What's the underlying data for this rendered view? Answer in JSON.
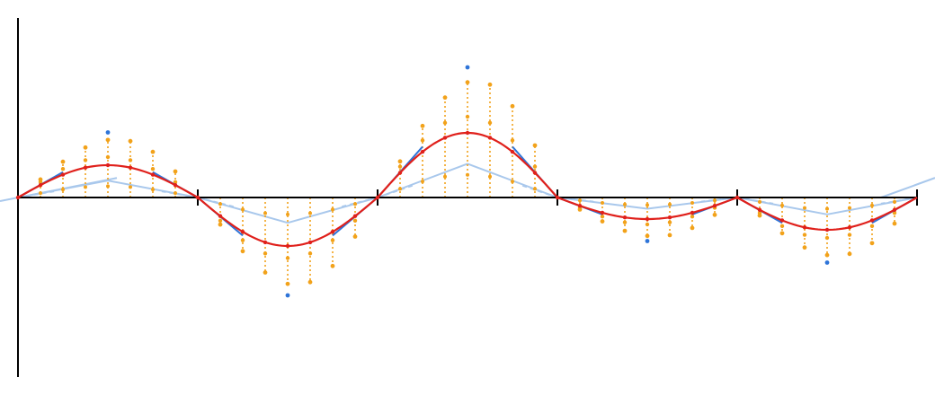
{
  "colors": {
    "axis": "#000000",
    "curve": "#e0201b",
    "tangent": "#2e74d8",
    "tangent_light": "#a9c8ec",
    "stem": "#f2a21a",
    "control": "#2e74d8"
  },
  "diagram": {
    "segments": [
      {
        "t0": 0,
        "t1": 1,
        "amplitude": 0.72
      },
      {
        "t0": 1,
        "t1": 2,
        "amplitude": -1.08
      },
      {
        "t0": 2,
        "t1": 3,
        "amplitude": 1.44
      },
      {
        "t0": 3,
        "t1": 4,
        "amplitude": -0.48
      },
      {
        "t0": 4,
        "t1": 5,
        "amplitude": -0.72
      }
    ],
    "knots": [
      0,
      1,
      2,
      3,
      4,
      5
    ],
    "control_points": [
      {
        "t": 0.5,
        "v": 1.45
      },
      {
        "t": 1.5,
        "v": -2.18
      },
      {
        "t": 2.5,
        "v": 2.9
      },
      {
        "t": 3.5,
        "v": -0.97
      },
      {
        "t": 4.5,
        "v": -1.45
      }
    ],
    "samples_per_segment": 8,
    "stem_scale": 1.8,
    "y_range": [
      -4,
      4
    ]
  }
}
